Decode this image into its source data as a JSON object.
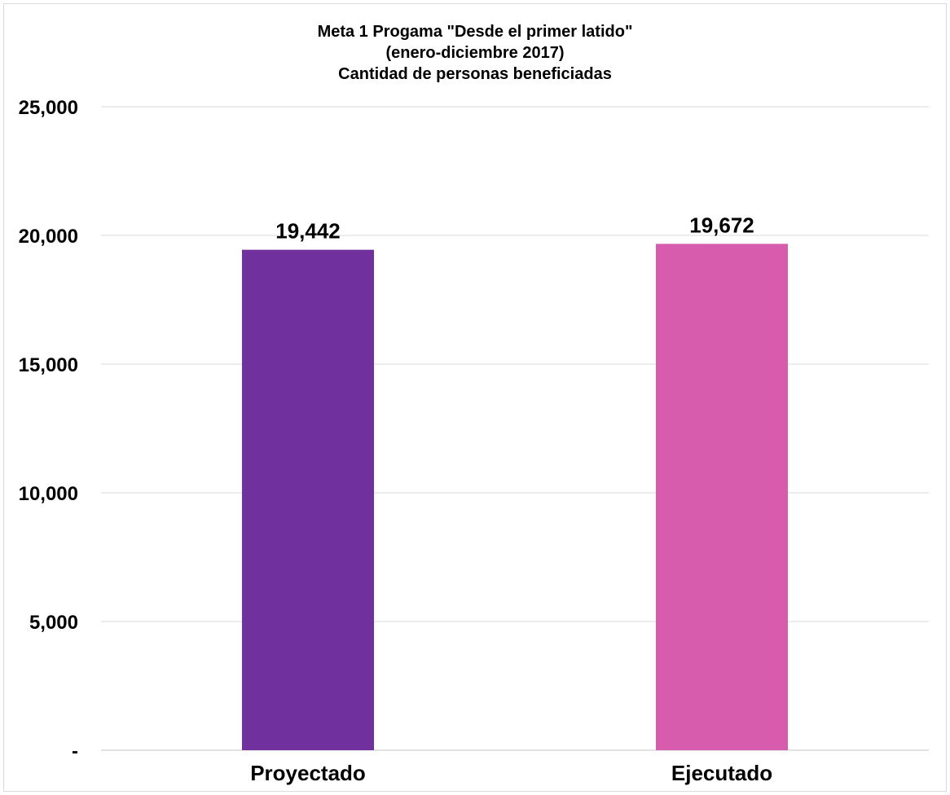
{
  "chart_data": {
    "type": "bar",
    "title": "Meta 1 Progama \"Desde el primer latido\"",
    "subtitle_lines": [
      "(enero-diciembre 2017)",
      "Cantidad de personas beneficiadas"
    ],
    "categories": [
      "Proyectado",
      "Ejecutado"
    ],
    "values": [
      19442,
      19672
    ],
    "value_labels": [
      "19,442",
      "19,672"
    ],
    "colors": [
      "#70309E",
      "#D75CAD"
    ],
    "ylim": [
      0,
      25000
    ],
    "yticks": [
      0,
      5000,
      10000,
      15000,
      20000,
      25000
    ],
    "ytick_labels": [
      "-",
      "5,000",
      "10,000",
      "15,000",
      "20,000",
      "25,000"
    ],
    "grid": true,
    "gridline_color": "#d9d9d9",
    "legend": "none"
  }
}
